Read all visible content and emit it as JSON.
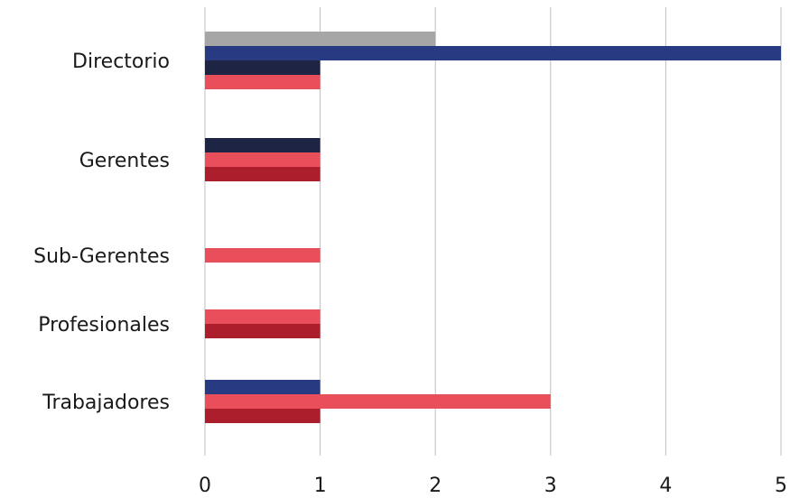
{
  "chart_data": {
    "type": "bar",
    "orientation": "horizontal",
    "title": "",
    "xlabel": "",
    "ylabel": "",
    "xlim": [
      0,
      5
    ],
    "x_ticks": [
      0,
      1,
      2,
      3,
      4,
      5
    ],
    "grid": "vertical",
    "legend": "none",
    "categories": [
      "Directorio",
      "Gerentes",
      "Sub-Gerentes",
      "Profesionales",
      "Trabajadores"
    ],
    "series": [
      {
        "color": "#a6a6a6",
        "values": [
          2,
          null,
          null,
          null,
          null
        ]
      },
      {
        "color": "#283a82",
        "values": [
          5,
          null,
          null,
          null,
          1
        ]
      },
      {
        "color": "#1e2444",
        "values": [
          1,
          1,
          null,
          null,
          null
        ]
      },
      {
        "color": "#e94e5b",
        "values": [
          1,
          1,
          1,
          1,
          3
        ]
      },
      {
        "color": "#ac1e2c",
        "values": [
          null,
          1,
          null,
          1,
          1
        ]
      }
    ]
  }
}
